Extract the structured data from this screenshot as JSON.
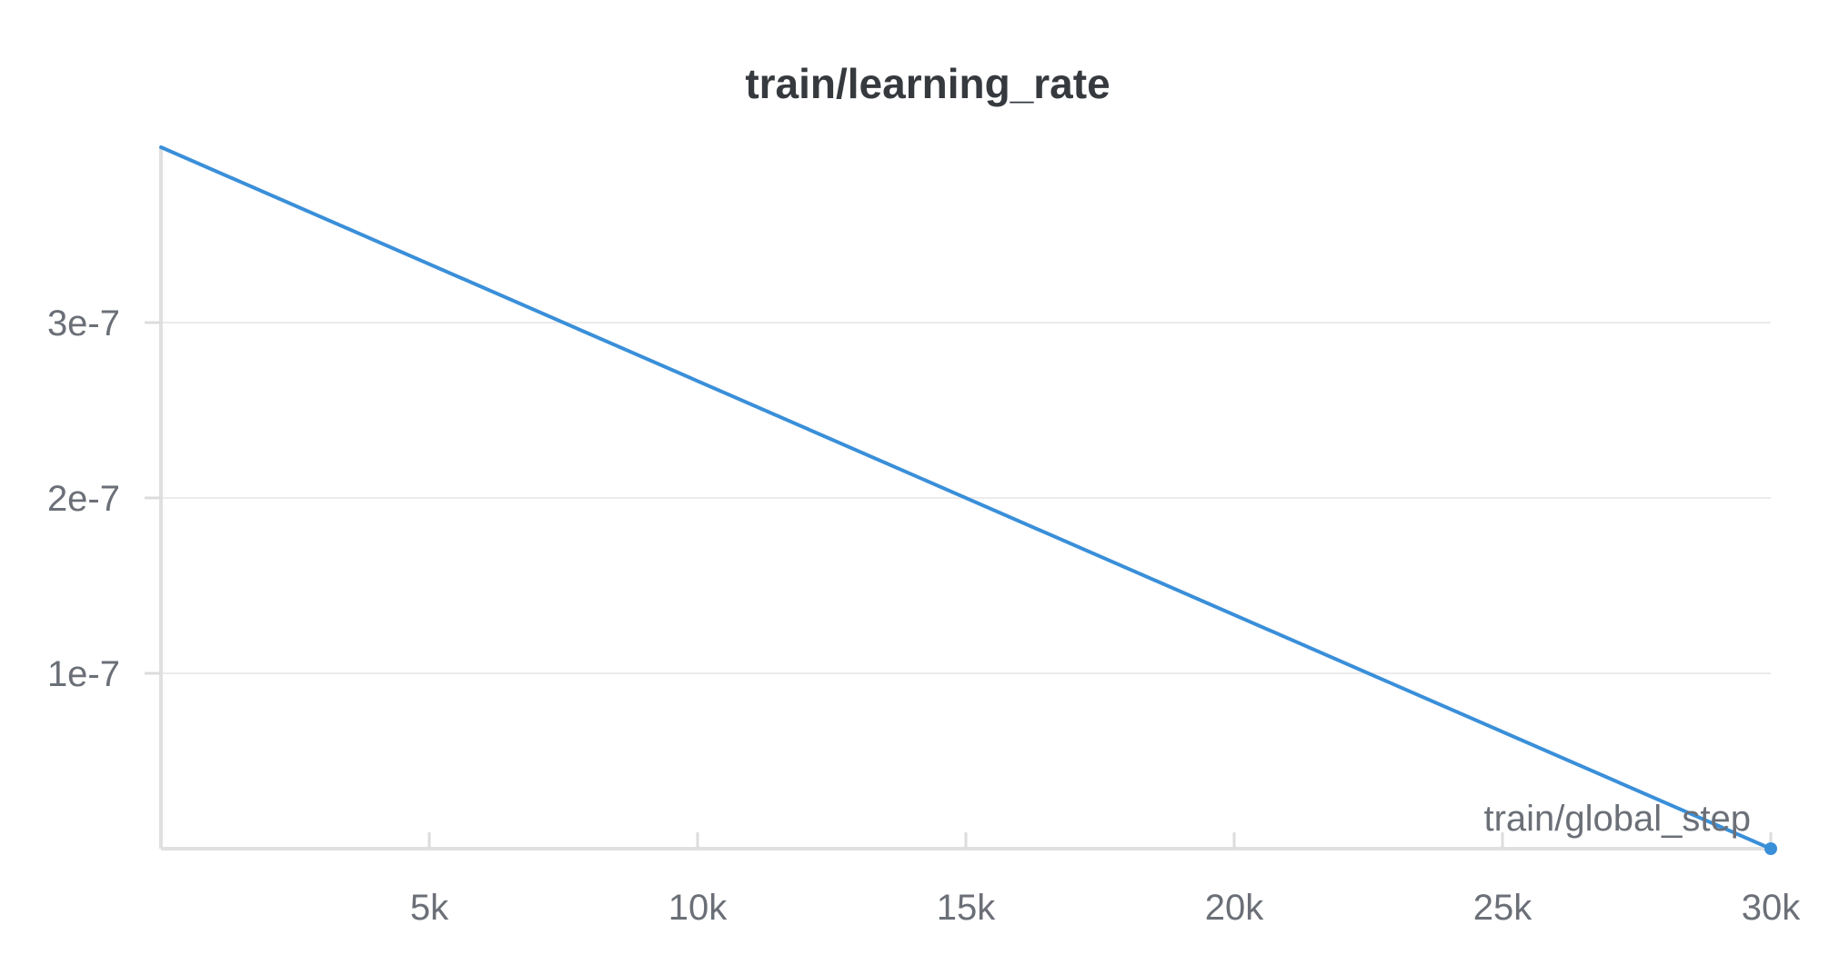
{
  "chart_data": {
    "type": "line",
    "title": "train/learning_rate",
    "xlabel": "train/global_step",
    "ylabel": "",
    "xlim": [
      0,
      30000
    ],
    "ylim": [
      0,
      4e-07
    ],
    "xticks": [
      {
        "value": 5000,
        "label": "5k"
      },
      {
        "value": 10000,
        "label": "10k"
      },
      {
        "value": 15000,
        "label": "15k"
      },
      {
        "value": 20000,
        "label": "20k"
      },
      {
        "value": 25000,
        "label": "25k"
      },
      {
        "value": 30000,
        "label": "30k"
      }
    ],
    "yticks": [
      {
        "value": 1e-07,
        "label": "1e-7"
      },
      {
        "value": 2e-07,
        "label": "2e-7"
      },
      {
        "value": 3e-07,
        "label": "3e-7"
      }
    ],
    "grid": "horizontal",
    "series": [
      {
        "color": "#3a8fd9",
        "x": [
          0,
          30000
        ],
        "y": [
          4e-07,
          0
        ]
      }
    ]
  }
}
